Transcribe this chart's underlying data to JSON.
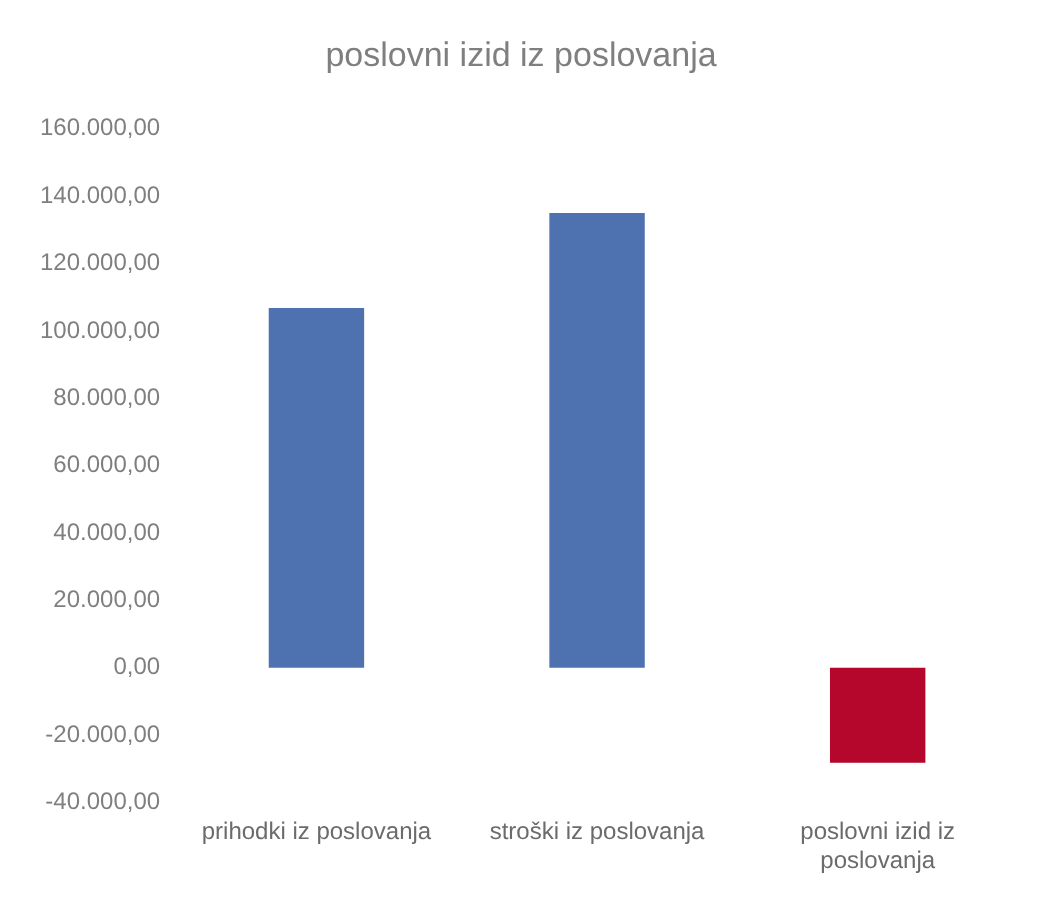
{
  "chart_data": {
    "type": "bar",
    "title": "poslovni izid iz poslovanja",
    "categories": [
      "prihodki iz poslovanja",
      "stroški iz poslovanja",
      "poslovni izid iz poslovanja"
    ],
    "values": [
      106800,
      135000,
      -28200
    ],
    "colors": [
      "#4e71b0",
      "#4e71b0",
      "#b5062b"
    ],
    "ylim": [
      -40000,
      160000
    ],
    "yticks": [
      {
        "value": -40000,
        "label": "-40.000,00"
      },
      {
        "value": -20000,
        "label": "-20.000,00"
      },
      {
        "value": 0,
        "label": "0,00"
      },
      {
        "value": 20000,
        "label": "20.000,00"
      },
      {
        "value": 40000,
        "label": "40.000,00"
      },
      {
        "value": 60000,
        "label": "60.000,00"
      },
      {
        "value": 80000,
        "label": "80.000,00"
      },
      {
        "value": 100000,
        "label": "100.000,00"
      },
      {
        "value": 120000,
        "label": "120.000,00"
      },
      {
        "value": 140000,
        "label": "140.000,00"
      },
      {
        "value": 160000,
        "label": "160.000,00"
      }
    ]
  }
}
